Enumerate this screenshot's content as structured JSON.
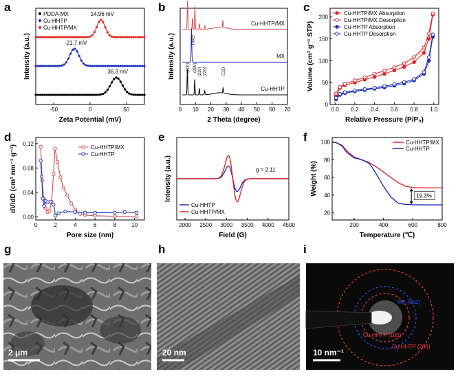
{
  "panel_labels": [
    "a",
    "b",
    "c",
    "d",
    "e",
    "f",
    "g",
    "h",
    "i"
  ],
  "chart_data": [
    {
      "id": "a",
      "type": "line",
      "xlabel": "Zeta Potential (mV)",
      "ylabel": "Intensity (a.u.)",
      "xlim": [
        -75,
        75
      ],
      "xticks": [
        -50,
        0,
        50
      ],
      "series": [
        {
          "name": "PDDA-MX",
          "color": "#000000",
          "peak": 36.3,
          "width": 11,
          "offset": 0
        },
        {
          "name": "Cu-HHTP",
          "color": "#1f2fb8",
          "peak": -21.7,
          "width": 9,
          "offset": 1
        },
        {
          "name": "Cu-HHTP/MX",
          "color": "#e02828",
          "peak": 14.96,
          "width": 8,
          "offset": 2
        }
      ],
      "annotations": [
        "36.3 mV",
        "-21.7 mV",
        "14.96 mV"
      ],
      "grid": false,
      "legend": "top-left"
    },
    {
      "id": "b",
      "type": "line",
      "xlabel": "2 Theta (degree)",
      "ylabel": "Intensity (a.u.)",
      "xlim": [
        0,
        70
      ],
      "xticks": [
        0,
        10,
        20,
        30,
        40,
        50,
        60,
        70
      ],
      "series": [
        {
          "name": "Cu-HHTP/MX",
          "color": "#d94a4a",
          "peaks": [
            [
              4.8,
              5
            ],
            [
              8.0,
              2
            ],
            [
              9.6,
              4
            ],
            [
              12.6,
              1
            ],
            [
              16.1,
              0.6
            ],
            [
              27.9,
              1.2
            ]
          ]
        },
        {
          "name": "MX",
          "color": "#1f2fb8",
          "peaks": [
            [
              7.4,
              6
            ]
          ]
        },
        {
          "name": "Cu-HHTP",
          "color": "#000000",
          "peaks": [
            [
              4.7,
              5
            ],
            [
              9.5,
              3
            ],
            [
              12.5,
              1.2
            ],
            [
              16.0,
              0.8
            ],
            [
              28.0,
              1
            ]
          ]
        }
      ],
      "peak_labels": [
        "(002)",
        "(100)",
        "(200)",
        "(210)",
        "(220)",
        "(112)"
      ],
      "grid": false,
      "legend": "none"
    },
    {
      "id": "c",
      "type": "line",
      "xlabel": "Relative Pressure (P/P₀)",
      "ylabel": "Volume (cm³ g⁻¹ STP)",
      "xlim": [
        -0.05,
        1.05
      ],
      "ylim": [
        0,
        220
      ],
      "xticks": [
        0.0,
        0.2,
        0.4,
        0.6,
        0.8,
        1.0
      ],
      "yticks": [
        0,
        50,
        100,
        150,
        200
      ],
      "x": [
        0.01,
        0.05,
        0.1,
        0.2,
        0.3,
        0.4,
        0.5,
        0.6,
        0.7,
        0.8,
        0.9,
        0.95,
        0.99
      ],
      "series": [
        {
          "name": "Cu-HHTP/MX Absorption",
          "color": "#e02828",
          "filled": true,
          "values": [
            20,
            38,
            44,
            50,
            57,
            63,
            70,
            78,
            86,
            97,
            118,
            150,
            205
          ]
        },
        {
          "name": "Cu-HHTP/MX Desorption",
          "color": "#e02828",
          "filled": false,
          "values": [
            25,
            40,
            47,
            55,
            62,
            70,
            77,
            85,
            94,
            108,
            130,
            162,
            208
          ]
        },
        {
          "name": "Cu-HHTP Absorption",
          "color": "#1f2fb8",
          "filled": true,
          "values": [
            12,
            22,
            26,
            30,
            33,
            36,
            39,
            43,
            48,
            55,
            70,
            100,
            155
          ]
        },
        {
          "name": "Cu-HHTP Desorption",
          "color": "#1f2fb8",
          "filled": false,
          "values": [
            15,
            24,
            28,
            32,
            35,
            38,
            42,
            46,
            51,
            58,
            74,
            108,
            160
          ]
        }
      ],
      "grid": false,
      "legend": "top-left"
    },
    {
      "id": "d",
      "type": "line",
      "xlabel": "Pore size (nm)",
      "ylabel": "dV/dD (cm³ nm⁻¹ g⁻¹)",
      "xlim": [
        0,
        11
      ],
      "ylim": [
        -0.005,
        0.13
      ],
      "xticks": [
        0,
        2,
        4,
        6,
        8,
        10
      ],
      "yticks": [
        0.0,
        0.04,
        0.08,
        0.12
      ],
      "series": [
        {
          "name": "Cu-HHTP/MX",
          "color": "#d94a4a",
          "x": [
            0.5,
            0.65,
            0.8,
            1.0,
            1.2,
            1.4,
            1.6,
            1.8,
            1.95,
            2.2,
            2.5,
            2.8,
            3.2,
            3.6,
            4.0,
            4.5,
            5.0,
            6.0,
            8.0,
            10.2
          ],
          "values": [
            0.115,
            0.06,
            0.03,
            0.014,
            0.008,
            0.01,
            0.025,
            0.07,
            0.112,
            0.09,
            0.065,
            0.048,
            0.035,
            0.022,
            0.012,
            0.005,
            0.003,
            0.002,
            0.001,
            0.001
          ]
        },
        {
          "name": "Cu-HHTP",
          "color": "#1f2fb8",
          "x": [
            0.5,
            0.6,
            0.7,
            0.85,
            1.0,
            1.2,
            1.5,
            1.8,
            2.0,
            2.3,
            3.0,
            4.0,
            5.0,
            6.0,
            8.0,
            9.0,
            10.2
          ],
          "values": [
            0.092,
            0.066,
            0.03,
            0.018,
            0.026,
            0.024,
            0.025,
            0.02,
            0.002,
            0.006,
            0.009,
            0.008,
            0.007,
            0.007,
            0.007,
            0.008,
            0.007
          ]
        }
      ],
      "grid": false,
      "legend": "top-right"
    },
    {
      "id": "e",
      "type": "line",
      "xlabel": "Field (G)",
      "ylabel": "Intensity (a.u.)",
      "xlim": [
        1800,
        4500
      ],
      "xticks": [
        2000,
        2500,
        3000,
        3500,
        4000,
        4500
      ],
      "series": [
        {
          "name": "Cu-HHTP",
          "color": "#1f2fb8",
          "center": 3150,
          "amplitude": 0.55
        },
        {
          "name": "Cu-HHTP/MX",
          "color": "#e02828",
          "center": 3150,
          "amplitude": 1.0
        }
      ],
      "annotations": [
        "g = 2.11"
      ],
      "grid": false,
      "legend": "bottom-left"
    },
    {
      "id": "f",
      "type": "line",
      "xlabel": "Temperature (℃)",
      "ylabel": "Weight (%)",
      "xlim": [
        50,
        800
      ],
      "ylim": [
        12,
        105
      ],
      "xticks": [
        200,
        400,
        600,
        800
      ],
      "yticks": [
        20,
        40,
        60,
        80,
        100
      ],
      "series": [
        {
          "name": "Cu-HHTP/MX",
          "color": "#e02828",
          "x": [
            50,
            80,
            120,
            150,
            200,
            250,
            300,
            350,
            400,
            450,
            500,
            550,
            600,
            650,
            700,
            800
          ],
          "values": [
            100,
            99,
            96,
            90,
            83,
            80,
            77,
            72,
            66,
            60,
            54,
            50,
            48.5,
            48.3,
            48.2,
            48.2
          ]
        },
        {
          "name": "Cu-HHTP",
          "color": "#1f2fb8",
          "x": [
            50,
            80,
            120,
            150,
            200,
            250,
            300,
            320,
            350,
            400,
            450,
            500,
            550,
            600,
            700,
            800
          ],
          "values": [
            100,
            99,
            95,
            88,
            82,
            80,
            76,
            72,
            64,
            50,
            38,
            31,
            29.5,
            29.2,
            29,
            29
          ]
        }
      ],
      "annotations": [
        "19.3%"
      ],
      "grid": false,
      "legend": "top-right"
    }
  ],
  "micrographs": {
    "g": {
      "scale_bar": "2 μm"
    },
    "h": {
      "scale_bar": "20 nm"
    },
    "i": {
      "scale_bar": "10 nm⁻¹",
      "ring_labels": [
        "MX (002)",
        "Cu-HHTP (100)",
        "Cu-HHTP (200)"
      ]
    }
  }
}
